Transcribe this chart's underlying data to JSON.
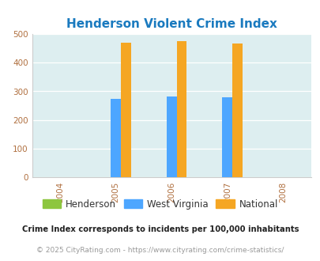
{
  "title": "Henderson Violent Crime Index",
  "title_color": "#1a7abf",
  "years": [
    2004,
    2005,
    2006,
    2007,
    2008
  ],
  "bar_years": [
    2005,
    2006,
    2007
  ],
  "henderson": [
    0,
    0,
    0
  ],
  "west_virginia": [
    275,
    283,
    280
  ],
  "national": [
    470,
    474,
    467
  ],
  "bar_width": 0.18,
  "colors": {
    "henderson": "#8dc63f",
    "west_virginia": "#4da6ff",
    "national": "#f5a623"
  },
  "ylim": [
    0,
    500
  ],
  "yticks": [
    0,
    100,
    200,
    300,
    400,
    500
  ],
  "xlim": [
    2003.5,
    2008.5
  ],
  "plot_bg": "#ddeef0",
  "legend_labels": [
    "Henderson",
    "West Virginia",
    "National"
  ],
  "footnote1": "Crime Index corresponds to incidents per 100,000 inhabitants",
  "footnote2": "© 2025 CityRating.com - https://www.cityrating.com/crime-statistics/",
  "footnote1_color": "#222222",
  "footnote2_color": "#999999",
  "tick_color": "#b07040"
}
